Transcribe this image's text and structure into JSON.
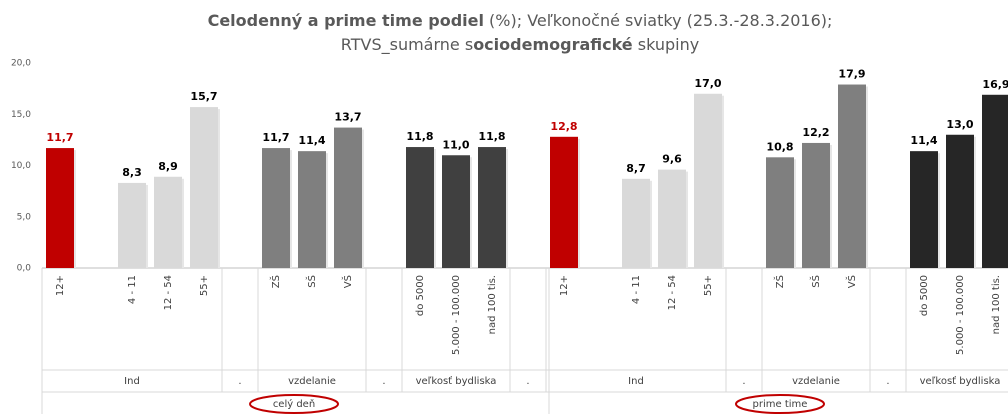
{
  "chart_data": {
    "type": "bar",
    "title_lines": [
      [
        {
          "text": "Celodenný a prime time podiel",
          "bold": true
        },
        {
          "text": " (%); Veľkonočné sviatky (25.3.-28.3.2016);",
          "bold": false
        }
      ],
      [
        {
          "text": "RTVS_sumárne s",
          "bold": false
        },
        {
          "text": "ociodemografické",
          "bold": true
        },
        {
          "text": " skupiny",
          "bold": false
        }
      ]
    ],
    "categories": [
      "12+",
      null,
      "4 - 11",
      "12 - 54",
      "55+",
      null,
      "ZŠ",
      "SŠ",
      "VŠ",
      null,
      "do 5000",
      "5.000 - 100.000",
      "nad 100 tis.",
      null,
      "12+",
      null,
      "4 - 11",
      "12 - 54",
      "55+",
      null,
      "ZŠ",
      "SŠ",
      "VŠ",
      null,
      "do 5000",
      "5.000 - 100.000",
      "nad 100 tis."
    ],
    "values": [
      11.7,
      null,
      8.3,
      8.9,
      15.7,
      null,
      11.7,
      11.4,
      13.7,
      null,
      11.8,
      11.0,
      11.8,
      null,
      12.8,
      null,
      8.7,
      9.6,
      17.0,
      null,
      10.8,
      12.2,
      17.9,
      null,
      11.4,
      13.0,
      16.9
    ],
    "value_labels": [
      "11,7",
      null,
      "8,3",
      "8,9",
      "15,7",
      null,
      "11,7",
      "11,4",
      "13,7",
      null,
      "11,8",
      "11,0",
      "11,8",
      null,
      "12,8",
      null,
      "8,7",
      "9,6",
      "17,0",
      null,
      "10,8",
      "12,2",
      "17,9",
      null,
      "11,4",
      "13,0",
      "16,9"
    ],
    "colors": [
      "#c00000",
      null,
      "#d9d9d9",
      "#d9d9d9",
      "#d9d9d9",
      null,
      "#7f7f7f",
      "#7f7f7f",
      "#7f7f7f",
      null,
      "#404040",
      "#404040",
      "#404040",
      null,
      "#c00000",
      null,
      "#d9d9d9",
      "#d9d9d9",
      "#d9d9d9",
      null,
      "#7f7f7f",
      "#7f7f7f",
      "#7f7f7f",
      null,
      "#262626",
      "#262626",
      "#262626"
    ],
    "highlight_label_color": "#c00000",
    "groups": [
      {
        "label": "Ind",
        "size": 5
      },
      {
        "label": ".",
        "size": 1
      },
      {
        "label": "vzdelanie",
        "size": 3
      },
      {
        "label": ".",
        "size": 1
      },
      {
        "label": "veľkosť bydliska",
        "size": 3
      },
      {
        "label": ".",
        "size": 1
      },
      {
        "label": "Ind",
        "size": 5
      },
      {
        "label": ".",
        "size": 1
      },
      {
        "label": "vzdelanie",
        "size": 3
      },
      {
        "label": ".",
        "size": 1
      },
      {
        "label": "veľkosť bydliska",
        "size": 3
      }
    ],
    "supergroups": [
      {
        "label": "celý deň",
        "size": 14
      },
      {
        "label": "prime time",
        "size": 13
      }
    ],
    "ylim": [
      0,
      20
    ],
    "yticks": [
      {
        "value": 0,
        "label": "0,0"
      },
      {
        "value": 5,
        "label": "5,0"
      },
      {
        "value": 10,
        "label": "10,0"
      },
      {
        "value": 15,
        "label": "15,0"
      },
      {
        "value": 20,
        "label": "20,0"
      }
    ],
    "grid": false
  }
}
